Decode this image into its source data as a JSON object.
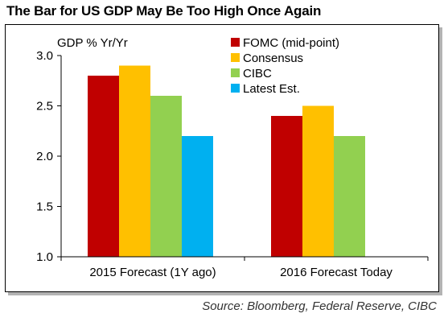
{
  "title": "The Bar for US GDP May Be Too High Once Again",
  "source": "Source: Bloomberg, Federal Reserve, CIBC",
  "chart_data": {
    "type": "bar",
    "title": "The Bar for US GDP May Be Too High Once Again",
    "ylabel": "GDP % Yr/Yr",
    "xlabel": "",
    "ylim": [
      1.0,
      3.0
    ],
    "yticks": [
      "1.0",
      "1.5",
      "2.0",
      "2.5",
      "3.0"
    ],
    "categories": [
      "2015 Forecast (1Y ago)",
      "2016 Forecast Today"
    ],
    "series": [
      {
        "name": "FOMC (mid-point)",
        "color": "#c00000",
        "values": [
          2.8,
          2.4
        ]
      },
      {
        "name": "Consensus",
        "color": "#ffc000",
        "values": [
          2.9,
          2.5
        ]
      },
      {
        "name": "CIBC",
        "color": "#92d050",
        "values": [
          2.6,
          2.2
        ]
      },
      {
        "name": "Latest Est.",
        "color": "#00b0f0",
        "values": [
          2.2,
          null
        ]
      }
    ],
    "legend_position": "top-right",
    "grid": false
  }
}
